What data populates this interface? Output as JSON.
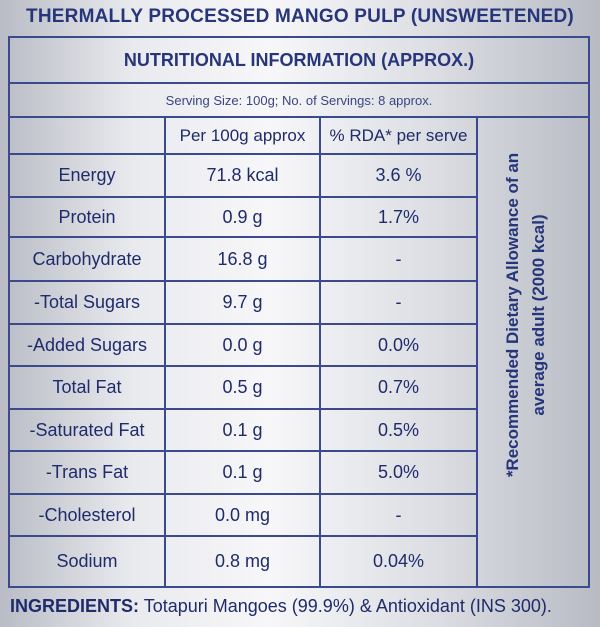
{
  "product_title": "THERMALLY PROCESSED MANGO PULP (UNSWEETENED)",
  "panel_title": "NUTRITIONAL INFORMATION (APPROX.)",
  "serving_info": "Serving Size: 100g;    No. of Servings: 8 approx.",
  "columns": {
    "per_100g": "Per 100g approx",
    "rda": "% RDA* per serve"
  },
  "rows": [
    {
      "nutrient": "Energy",
      "per_100g": "71.8 kcal",
      "rda": "3.6 %"
    },
    {
      "nutrient": "Protein",
      "per_100g": "0.9 g",
      "rda": "1.7%"
    },
    {
      "nutrient": "Carbohydrate",
      "per_100g": "16.8 g",
      "rda": "-"
    },
    {
      "nutrient": "-Total Sugars",
      "per_100g": "9.7 g",
      "rda": "-"
    },
    {
      "nutrient": "-Added Sugars",
      "per_100g": "0.0  g",
      "rda": "0.0%"
    },
    {
      "nutrient": "Total Fat",
      "per_100g": "0.5 g",
      "rda": "0.7%"
    },
    {
      "nutrient": "-Saturated Fat",
      "per_100g": "0.1 g",
      "rda": "0.5%"
    },
    {
      "nutrient": "-Trans Fat",
      "per_100g": "0.1 g",
      "rda": "5.0%"
    },
    {
      "nutrient": "-Cholesterol",
      "per_100g": "0.0 mg",
      "rda": "-"
    },
    {
      "nutrient": "Sodium",
      "per_100g": "0.8 mg",
      "rda": "0.04%"
    }
  ],
  "rda_note": {
    "line1": "*Recommended Dietary Allowance of an",
    "line2": "average adult (2000 kcal)"
  },
  "ingredients": {
    "label": "INGREDIENTS:",
    "text": "Totapuri Mangoes (99.9%) & Antioxidant (INS 300)."
  }
}
